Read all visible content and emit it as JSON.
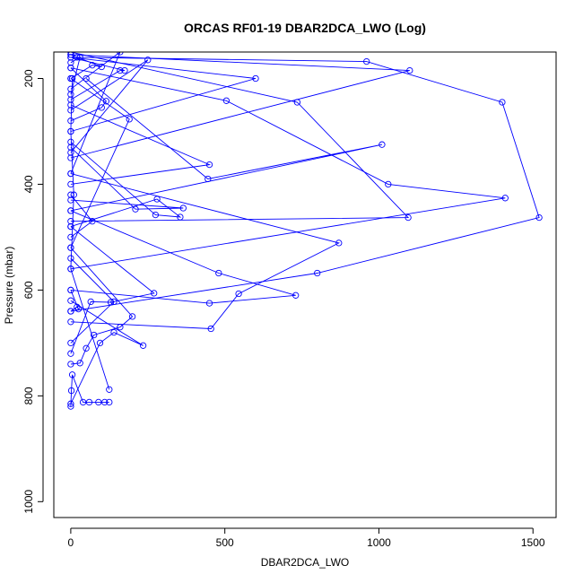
{
  "chart_data": {
    "type": "line",
    "title": "ORCAS RF01-19 DBAR2DCA_LWO (Log)",
    "xlabel": "DBAR2DCA_LWO",
    "ylabel": "Pressure (mbar)",
    "xlim": [
      -55,
      1575
    ],
    "ylim": [
      1030,
      150
    ],
    "y_inverted": true,
    "x_ticks": [
      0,
      500,
      1000,
      1500
    ],
    "x_tick_labels": [
      "0",
      "500",
      "1000",
      "1500"
    ],
    "y_ticks": [
      200,
      400,
      600,
      800,
      1000
    ],
    "y_tick_labels": [
      "200",
      "400",
      "600",
      "800",
      "1000"
    ],
    "grid": false,
    "legend": "none",
    "line_color": "#0000ff",
    "marker": "open-circle",
    "series": [
      {
        "points": [
          [
            0,
            820
          ],
          [
            2,
            790
          ],
          [
            5,
            760
          ],
          [
            40,
            812
          ],
          [
            60,
            812
          ],
          [
            90,
            812
          ],
          [
            110,
            812
          ],
          [
            125,
            812
          ]
        ]
      },
      {
        "points": [
          [
            125,
            788
          ],
          [
            0,
            560
          ],
          [
            10,
            420
          ],
          [
            0,
            300
          ],
          [
            5,
            200
          ]
        ]
      },
      {
        "points": [
          [
            0,
            815
          ],
          [
            95,
            700
          ],
          [
            140,
            680
          ],
          [
            235,
            705
          ],
          [
            0,
            620
          ]
        ]
      },
      {
        "points": [
          [
            0,
            740
          ],
          [
            30,
            738
          ],
          [
            50,
            710
          ],
          [
            75,
            685
          ],
          [
            160,
            670
          ],
          [
            200,
            650
          ],
          [
            0,
            520
          ]
        ]
      },
      {
        "points": [
          [
            0,
            720
          ],
          [
            65,
            622
          ],
          [
            130,
            623
          ],
          [
            270,
            606
          ],
          [
            0,
            480
          ]
        ]
      },
      {
        "points": [
          [
            0,
            660
          ],
          [
            455,
            673
          ],
          [
            545,
            607
          ],
          [
            870,
            511
          ],
          [
            0,
            380
          ]
        ]
      },
      {
        "points": [
          [
            0,
            600
          ],
          [
            450,
            625
          ],
          [
            730,
            610
          ],
          [
            480,
            568
          ],
          [
            0,
            450
          ]
        ]
      },
      {
        "points": [
          [
            0,
            640
          ],
          [
            800,
            568
          ],
          [
            1520,
            463
          ],
          [
            1400,
            245
          ],
          [
            960,
            168
          ],
          [
            20,
            160
          ]
        ]
      },
      {
        "points": [
          [
            0,
            560
          ],
          [
            1410,
            426
          ],
          [
            1030,
            400
          ],
          [
            505,
            242
          ],
          [
            0,
            180
          ]
        ]
      },
      {
        "points": [
          [
            0,
            470
          ],
          [
            1095,
            463
          ],
          [
            735,
            245
          ],
          [
            0,
            150
          ]
        ]
      },
      {
        "points": [
          [
            0,
            450
          ],
          [
            1010,
            325
          ],
          [
            445,
            390
          ],
          [
            50,
            200
          ]
        ]
      },
      {
        "points": [
          [
            0,
            400
          ],
          [
            450,
            363
          ],
          [
            0,
            250
          ]
        ]
      },
      {
        "points": [
          [
            0,
            300
          ],
          [
            600,
            200
          ],
          [
            0,
            160
          ]
        ]
      },
      {
        "points": [
          [
            0,
            350
          ],
          [
            1100,
            185
          ],
          [
            0,
            155
          ]
        ]
      },
      {
        "points": [
          [
            0,
            430
          ],
          [
            365,
            445
          ],
          [
            210,
            447
          ],
          [
            0,
            330
          ]
        ]
      },
      {
        "points": [
          [
            0,
            480
          ],
          [
            280,
            428
          ],
          [
            355,
            462
          ],
          [
            275,
            458
          ],
          [
            0,
            320
          ]
        ]
      },
      {
        "points": [
          [
            0,
            520
          ],
          [
            190,
            277
          ],
          [
            0,
            200
          ]
        ]
      },
      {
        "points": [
          [
            0,
            280
          ],
          [
            100,
            255
          ],
          [
            115,
            243
          ],
          [
            0,
            180
          ]
        ]
      },
      {
        "points": [
          [
            0,
            240
          ],
          [
            160,
            185
          ],
          [
            175,
            185
          ],
          [
            0,
            160
          ]
        ]
      },
      {
        "points": [
          [
            0,
            200
          ],
          [
            70,
            175
          ],
          [
            100,
            178
          ],
          [
            0,
            155
          ]
        ]
      },
      {
        "points": [
          [
            0,
            640
          ],
          [
            20,
            632
          ],
          [
            25,
            636
          ],
          [
            0,
            600
          ]
        ]
      },
      {
        "points": [
          [
            0,
            700
          ],
          [
            140,
            622
          ],
          [
            0,
            540
          ]
        ]
      },
      {
        "points": [
          [
            0,
            380
          ],
          [
            160,
            150
          ],
          [
            0,
            220
          ]
        ]
      },
      {
        "points": [
          [
            0,
            230
          ],
          [
            30,
            160
          ],
          [
            0,
            170
          ]
        ]
      },
      {
        "points": [
          [
            0,
            340
          ],
          [
            250,
            165
          ],
          [
            0,
            260
          ]
        ]
      },
      {
        "points": [
          [
            0,
            500
          ],
          [
            70,
            470
          ],
          [
            0,
            420
          ]
        ]
      }
    ]
  }
}
